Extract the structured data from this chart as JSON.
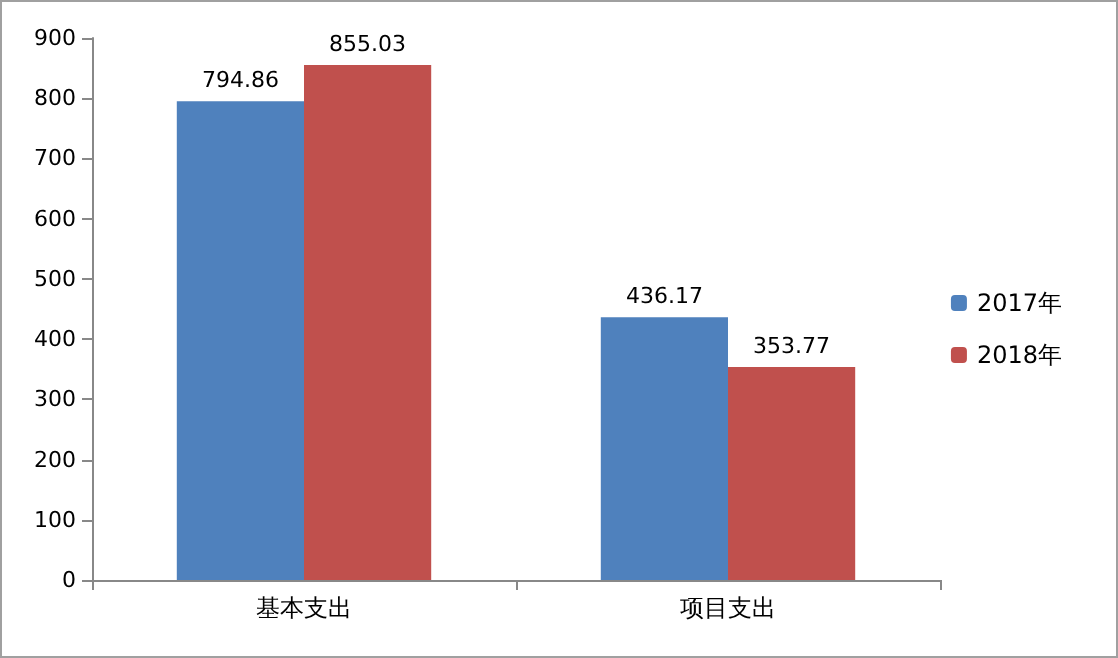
{
  "chart_data": {
    "type": "bar",
    "categories": [
      "基本支出",
      "项目支出"
    ],
    "series": [
      {
        "name": "2017年",
        "color": "#4f81bd",
        "values": [
          794.86,
          436.17
        ]
      },
      {
        "name": "2018年",
        "color": "#c0504d",
        "values": [
          855.03,
          353.77
        ]
      }
    ],
    "ylim": [
      0,
      900
    ],
    "yticks": [
      0,
      100,
      200,
      300,
      400,
      500,
      600,
      700,
      800,
      900
    ],
    "grid": false,
    "legend": "right",
    "data_labels": true
  }
}
